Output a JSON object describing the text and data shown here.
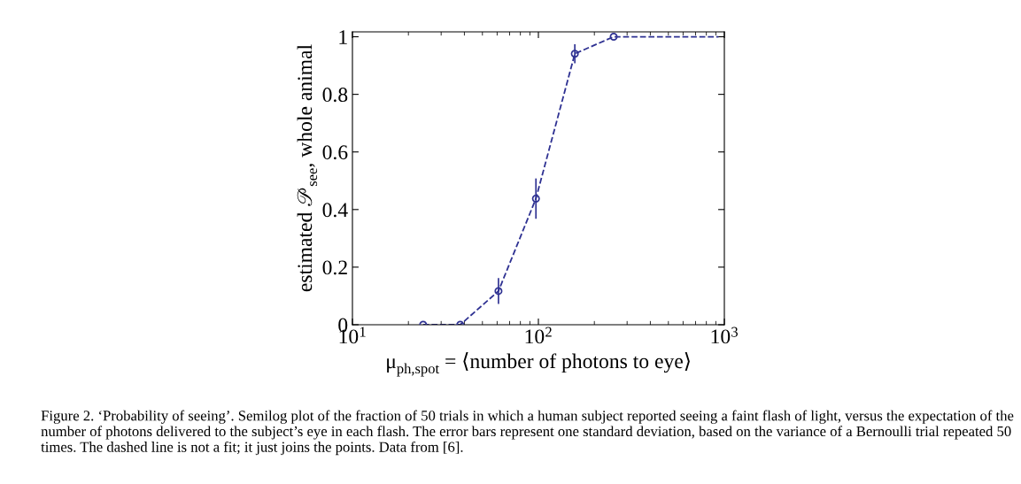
{
  "chart_data": {
    "type": "scatter",
    "xlabel": "μ$_{ph,spot}$ = ⟨number of photons to eye⟩",
    "ylabel": "estimated 𝒫$_{see}$, whole animal",
    "series": [
      {
        "type": "line",
        "color": "#2e3192",
        "line_style": "dashed",
        "marker": "none",
        "x": [
          24,
          38,
          61,
          97,
          157,
          254,
          930
        ],
        "values": [
          0,
          0,
          0.117,
          0.438,
          0.941,
          1.0,
          1.0
        ]
      },
      {
        "color": "#2e3192",
        "marker": "circle",
        "x": [
          24,
          38,
          61,
          97,
          157,
          254
        ],
        "values": [
          0,
          0,
          0.117,
          0.438,
          0.941,
          1.0
        ],
        "errors": [
          null,
          null,
          0.045,
          0.07,
          0.033,
          null
        ]
      }
    ],
    "log": "x",
    "xlim": [
      10,
      1000
    ],
    "xticks": [
      {
        "value": 10,
        "label": "10$^{1}$"
      },
      {
        "value": 100,
        "label": "10$^{2}$"
      },
      {
        "value": 1000,
        "label": "10$^{3}$"
      }
    ],
    "ylim": [
      0,
      1.017
    ],
    "yticks": [
      0,
      0.2,
      0.4,
      0.6,
      0.8,
      1
    ],
    "grid": false,
    "legend": false,
    "annotations": [
      "Figure 2. ‘Probability of seeing’. Semilog plot of the fraction of 50 trials in which a human subject reported seeing a faint flash of light, versus the expectation of the number of photons delivered to the subject’s eye in each flash. The error bars represent one standard deviation, based on the variance of a Bernoulli trial repeated 50 times. The dashed line is not a fit; it just joins the points. Data from [6]."
    ]
  }
}
